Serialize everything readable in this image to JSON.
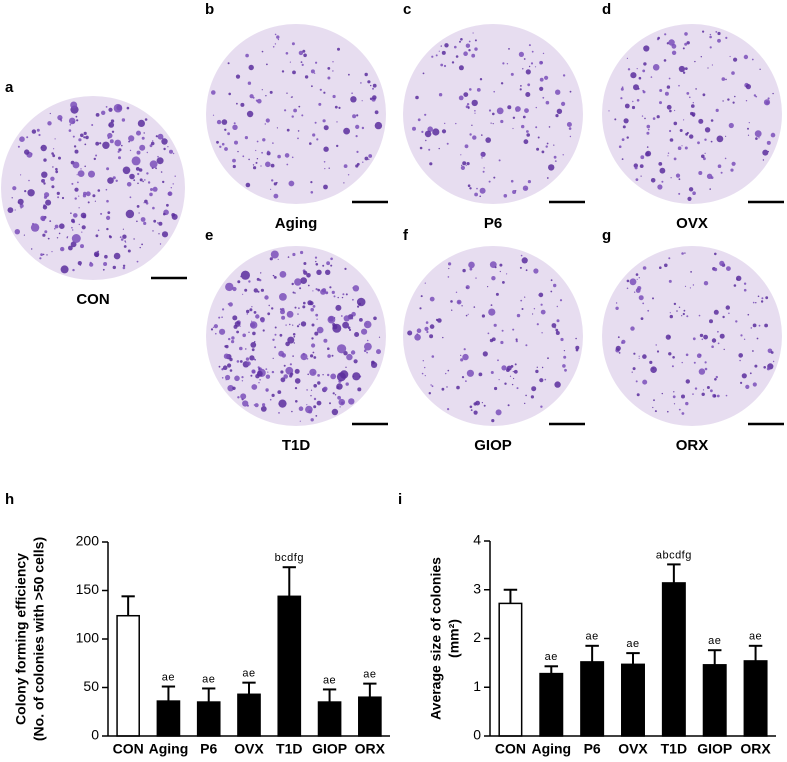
{
  "panels": [
    {
      "letter": "a",
      "label": "CON"
    },
    {
      "letter": "b",
      "label": "Aging"
    },
    {
      "letter": "c",
      "label": "P6"
    },
    {
      "letter": "d",
      "label": "OVX"
    },
    {
      "letter": "e",
      "label": "T1D"
    },
    {
      "letter": "f",
      "label": "GIOP"
    },
    {
      "letter": "g",
      "label": "ORX"
    }
  ],
  "chart_data": [
    {
      "type": "bar",
      "panel": "h",
      "ylabel": [
        "Colony forming efficiency",
        "(No. of colonies with >50 cells)"
      ],
      "categories": [
        "CON",
        "Aging",
        "P6",
        "OVX",
        "T1D",
        "GIOP",
        "ORX"
      ],
      "values": [
        124,
        36,
        35,
        43,
        144,
        35,
        40
      ],
      "errors": [
        20,
        15,
        14,
        12,
        30,
        13,
        14
      ],
      "annotations": [
        null,
        "ae",
        "ae",
        "ae",
        "bcdfg",
        "ae",
        "ae"
      ],
      "colors": [
        "#ffffff",
        "#000000",
        "#000000",
        "#000000",
        "#000000",
        "#000000",
        "#000000"
      ],
      "ylim": [
        0,
        200
      ],
      "yticks": [
        0,
        50,
        100,
        150,
        200
      ]
    },
    {
      "type": "bar",
      "panel": "i",
      "ylabel": [
        "Average size of colonies",
        "(mm²)"
      ],
      "categories": [
        "CON",
        "Aging",
        "P6",
        "OVX",
        "T1D",
        "GIOP",
        "ORX"
      ],
      "values": [
        2.72,
        1.28,
        1.52,
        1.47,
        3.14,
        1.46,
        1.54
      ],
      "errors": [
        0.28,
        0.15,
        0.33,
        0.23,
        0.38,
        0.3,
        0.31
      ],
      "annotations": [
        null,
        "ae",
        "ae",
        "ae",
        "abcdfg",
        "ae",
        "ae"
      ],
      "colors": [
        "#ffffff",
        "#000000",
        "#000000",
        "#000000",
        "#000000",
        "#000000",
        "#000000"
      ],
      "ylim": [
        0,
        4
      ],
      "yticks": [
        0,
        1,
        2,
        3,
        4
      ]
    }
  ]
}
